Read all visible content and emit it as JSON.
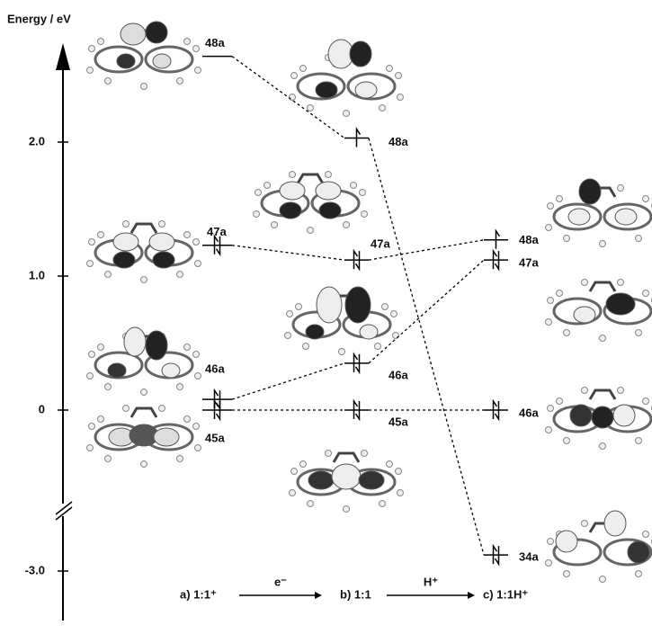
{
  "axis": {
    "label": "Energy / eV",
    "ticks": [
      {
        "value": 2,
        "label": "2.0"
      },
      {
        "value": 1,
        "label": "1.0"
      },
      0,
      {
        "value": -3,
        "label": "-3.0"
      }
    ]
  },
  "columns": [
    {
      "name": "a)  1:1⁺",
      "levels": [
        {
          "label": "48a",
          "energy": 2.64,
          "electrons": 0
        },
        {
          "label": "47a",
          "energy": 1.23,
          "electrons": 2
        },
        {
          "label": "46a",
          "energy": 0.08,
          "electrons": 2
        },
        {
          "label": "45a",
          "energy": 0,
          "electrons": 2
        }
      ]
    },
    {
      "name": "b)  1:1",
      "levels": [
        {
          "label": "48a",
          "energy": 2.03,
          "electrons": 1
        },
        {
          "label": "47a",
          "energy": 1.12,
          "electrons": 2
        },
        {
          "label": "46a",
          "energy": 0.35,
          "electrons": 2
        },
        {
          "label": "45a",
          "energy": 0,
          "electrons": 2
        }
      ]
    },
    {
      "name": "c)  1:1H⁺",
      "levels": [
        {
          "label": "48a",
          "energy": 1.27,
          "electrons": 1
        },
        {
          "label": "47a",
          "energy": 1.12,
          "electrons": 2
        },
        {
          "label": "46a",
          "energy": 0,
          "electrons": 2
        },
        {
          "label": "34a",
          "energy": -2.88,
          "electrons": 2
        }
      ]
    }
  ],
  "steps": [
    "e⁻",
    "H⁺"
  ]
}
